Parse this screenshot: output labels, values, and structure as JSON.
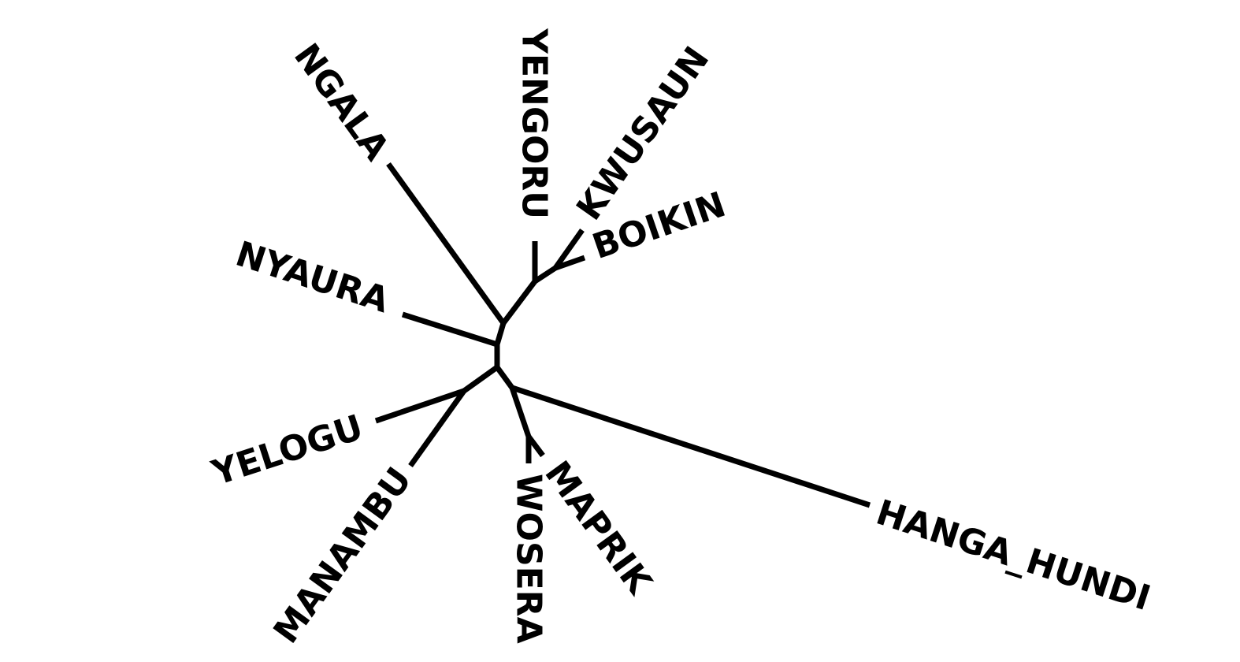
{
  "style": {
    "line_color": "#000000",
    "label_color": "#000000",
    "background": "#ffffff"
  },
  "tree": {
    "type": "unrooted",
    "leaves": [
      {
        "id": "ngala",
        "name": "NGALA"
      },
      {
        "id": "yengoru",
        "name": "YENGORU"
      },
      {
        "id": "kwusaun",
        "name": "KWUSAUN"
      },
      {
        "id": "boikin",
        "name": "BOIKIN"
      },
      {
        "id": "nyaura",
        "name": "NYAURA"
      },
      {
        "id": "yelogu",
        "name": "YELOGU"
      },
      {
        "id": "manambu",
        "name": "MANAMBU"
      },
      {
        "id": "wosera",
        "name": "WOSERA"
      },
      {
        "id": "maprik",
        "name": "MAPRIK"
      },
      {
        "id": "hanga-hundi",
        "name": "HANGA_HUNDI"
      }
    ]
  }
}
